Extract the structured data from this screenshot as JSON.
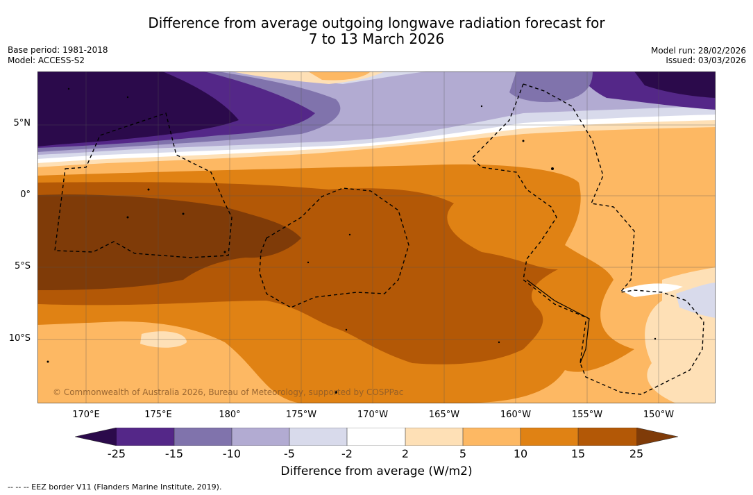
{
  "title": {
    "line1": "Difference from average outgoing longwave radiation forecast for",
    "line2": "7 to 13 March 2026"
  },
  "meta": {
    "base_period": "Base period: 1981-2018",
    "model": "Model: ACCESS-S2",
    "model_run": "Model run: 28/02/2026",
    "issued": "Issued: 03/03/2026"
  },
  "map": {
    "lat_labels": [
      "5°N",
      "0°",
      "5°S",
      "10°S"
    ],
    "lon_labels": [
      "170°E",
      "175°E",
      "180°",
      "175°W",
      "170°W",
      "165°W",
      "160°W",
      "155°W",
      "150°W"
    ],
    "credit": "© Commonwealth of Australia 2026, Bureau of Meteorology, supported by COSPPac"
  },
  "colorbar": {
    "title": "Difference from average (W/m2)",
    "ticks": [
      "-25",
      "-15",
      "-10",
      "-5",
      "-2",
      "2",
      "5",
      "10",
      "15",
      "25"
    ],
    "colors": [
      "#2b0a4b",
      "#542788",
      "#8073ac",
      "#b2abd2",
      "#d8daeb",
      "#ffffff",
      "#fee0b6",
      "#fdb863",
      "#e08214",
      "#b35806",
      "#7f3b08"
    ]
  },
  "footnote": "--  --  -- EEZ border V11 (Flanders Marine Institute, 2019)."
}
